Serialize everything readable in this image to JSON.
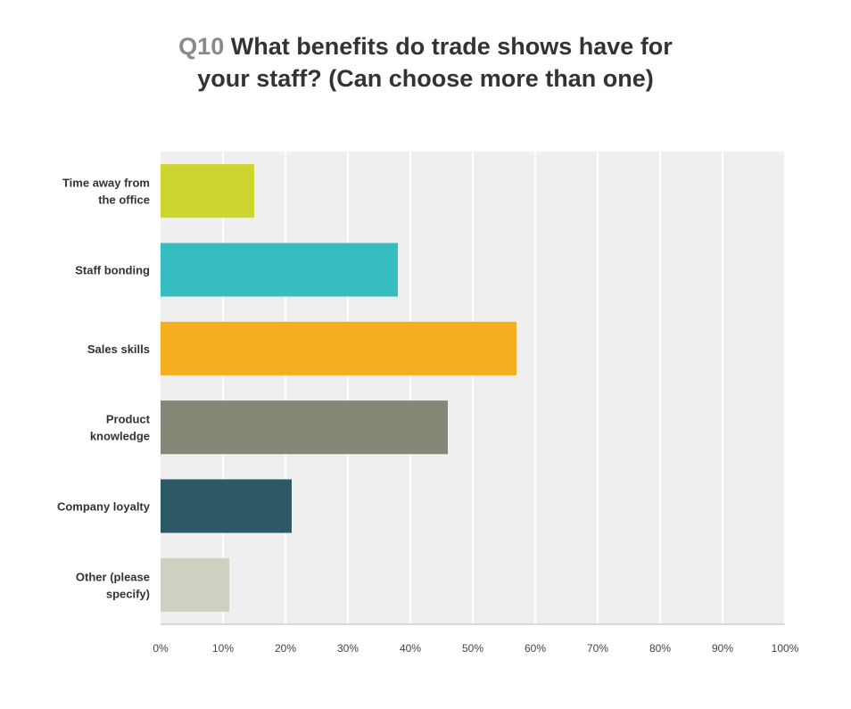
{
  "title": {
    "prefix": "Q10",
    "line1": "What benefits do trade shows have for",
    "line2": "your staff? (Can choose more than one)"
  },
  "chart_data": {
    "type": "bar",
    "orientation": "horizontal",
    "categories": [
      [
        "Time away from",
        "the office"
      ],
      [
        "Staff bonding"
      ],
      [
        "Sales skills"
      ],
      [
        "Product",
        "knowledge"
      ],
      [
        "Company loyalty"
      ],
      [
        "Other (please",
        "specify)"
      ]
    ],
    "values": [
      15,
      38,
      57,
      46,
      21,
      11
    ],
    "colors": [
      "#cfd530",
      "#35bdc0",
      "#f5ae1e",
      "#868877",
      "#2d5966",
      "#d0d0c2"
    ],
    "xlim": [
      0,
      100
    ],
    "x_ticks": [
      "0%",
      "10%",
      "20%",
      "30%",
      "40%",
      "50%",
      "60%",
      "70%",
      "80%",
      "90%",
      "100%"
    ],
    "grid": true,
    "unit": "%"
  }
}
